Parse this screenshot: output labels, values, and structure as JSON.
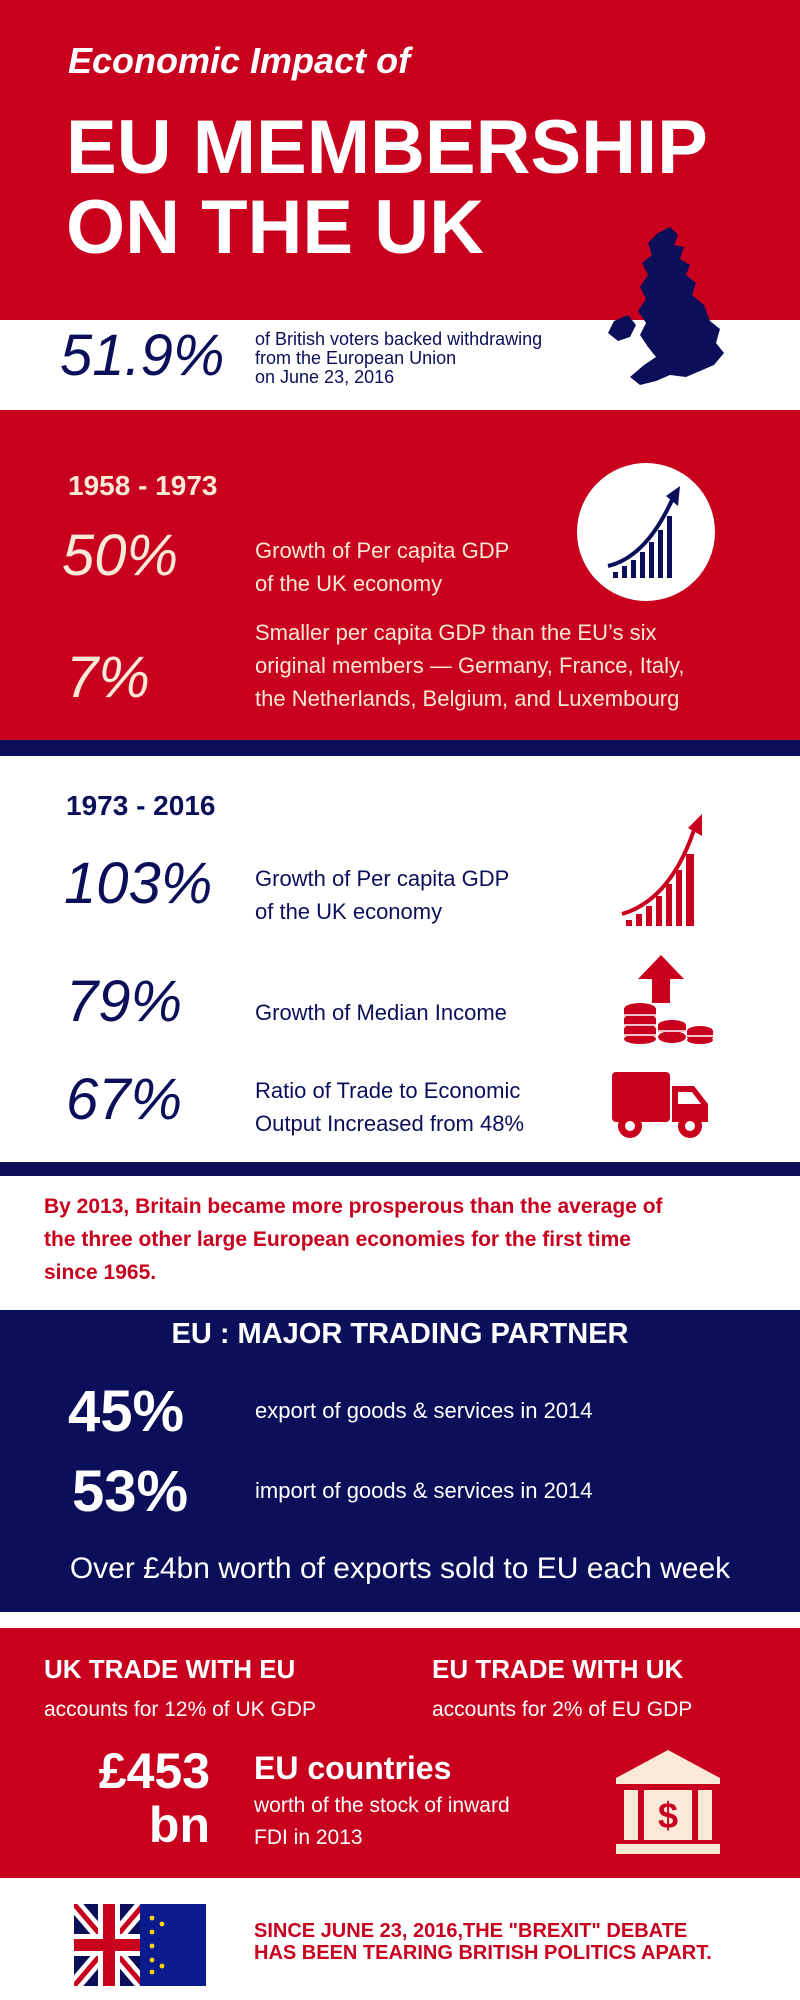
{
  "header": {
    "subtitle": "Economic Impact of",
    "title_line1": "EU MEMBERSHIP",
    "title_line2": "ON THE UK"
  },
  "vote": {
    "percent": "51.9%",
    "line1": "of British voters backed  withdrawing",
    "line2": "from the European Union",
    "line3": "on June 23, 2016"
  },
  "period1": {
    "heading": "1958 - 1973",
    "stats": [
      {
        "value": "50%",
        "line1": "Growth of Per capita GDP",
        "line2": "of the UK economy"
      },
      {
        "value": "7%",
        "line1": "Smaller per capita GDP than the EU’s six",
        "line2": "original members — Germany, France, Italy,",
        "line3": "the Netherlands, Belgium, and Luxembourg"
      }
    ]
  },
  "period2": {
    "heading": "1973 - 2016",
    "stats": [
      {
        "value": "103%",
        "line1": "Growth of Per capita GDP",
        "line2": "of the UK economy"
      },
      {
        "value": "79%",
        "line1": "Growth of Median Income"
      },
      {
        "value": "67%",
        "line1": "Ratio of Trade to Economic",
        "line2": "Output Increased from 48%"
      }
    ]
  },
  "prosperity": {
    "line1": "By 2013, Britain became more prosperous than the average of",
    "line2": "the three other large European economies for the first time",
    "line3": "since 1965."
  },
  "trading": {
    "heading": "EU : MAJOR TRADING PARTNER",
    "stats": [
      {
        "value": "45%",
        "text": "export of goods & services in 2014"
      },
      {
        "value": "53%",
        "text": "import of goods & services in 2014"
      }
    ],
    "footer": "Over £4bn worth of exports sold to EU each week"
  },
  "trade_gdp": {
    "uk_heading": "UK TRADE WITH EU",
    "uk_text": "accounts for 12% of UK GDP",
    "eu_heading": "EU TRADE WITH UK",
    "eu_text": "accounts for 2% of EU GDP",
    "fdi_value_line1": "£453",
    "fdi_value_line2": "bn",
    "fdi_heading": "EU countries",
    "fdi_line1": "worth of the stock of inward",
    "fdi_line2": "FDI in 2013"
  },
  "footer": {
    "line1": "SINCE JUNE 23, 2016,THE \"BREXIT\" DEBATE",
    "line2": "HAS BEEN TEARING BRITISH POLITICS APART."
  },
  "colors": {
    "red": "#c8001e",
    "navy": "#0b0f5a",
    "white": "#ffffff",
    "cream": "#fbe9d7"
  },
  "icons": [
    "uk-map-icon",
    "growth-chart-icon",
    "growth-chart-red-icon",
    "coins-arrow-icon",
    "delivery-truck-icon",
    "bank-dollar-icon",
    "union-jack-flag-icon",
    "eu-flag-icon"
  ]
}
